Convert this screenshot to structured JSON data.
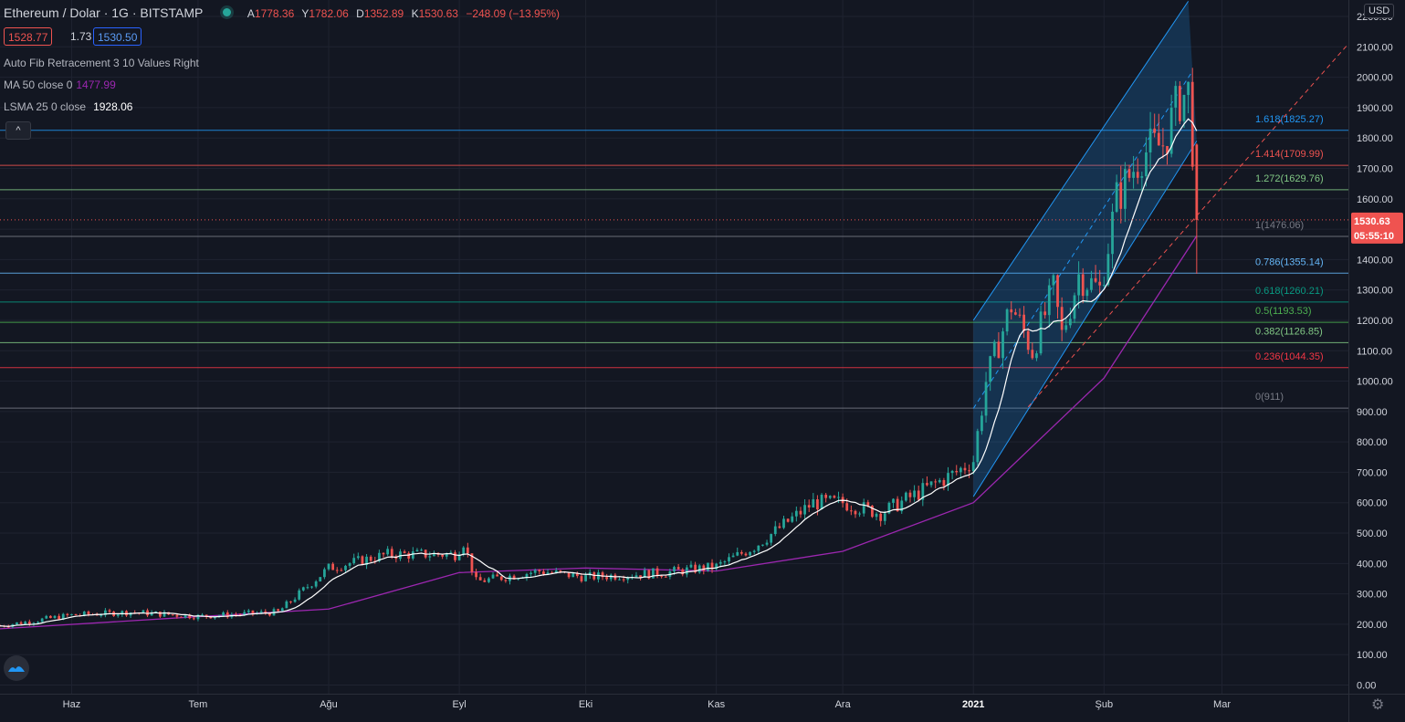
{
  "header": {
    "symbol": "Ethereum / Dolar · 1G · BITSTAMP",
    "open_label": "A",
    "open": "1778.36",
    "high_label": "Y",
    "high": "1782.06",
    "low_label": "D",
    "low": "1352.89",
    "close_label": "K",
    "close": "1530.63",
    "change": "−248.09 (−13.95%)"
  },
  "quote": {
    "bid": "1528.77",
    "spread": "1.73",
    "ask": "1530.50"
  },
  "indicators": {
    "fib": {
      "label": "Auto Fib Retracement 3 10 Values Right"
    },
    "ma": {
      "label": "MA 50 close 0",
      "value": "1477.99"
    },
    "lsma": {
      "label": "LSMA 25 0 close",
      "value": "1928.06"
    }
  },
  "toolbar": {
    "collapse_glyph": "^"
  },
  "currency": "USD",
  "colors": {
    "bg": "#131722",
    "up": "#26a69a",
    "down": "#ef5350",
    "ma": "#9c27b0",
    "lsma": "#ffffff",
    "channel": "#2962ff"
  },
  "chart_data": {
    "type": "candlestick",
    "y_axis": {
      "min": 0,
      "max": 2230,
      "ticks": [
        0,
        100,
        200,
        300,
        400,
        500,
        600,
        700,
        800,
        900,
        1000,
        1100,
        1200,
        1300,
        1400,
        1500,
        1600,
        1700,
        1800,
        1900,
        2000,
        2100,
        2200
      ],
      "tick_labels": [
        "0.00",
        "100.00",
        "200.00",
        "300.00",
        "400.00",
        "500.00",
        "600.00",
        "700.00",
        "800.00",
        "900.00",
        "1000.00",
        "1100.00",
        "1200.00",
        "1300.00",
        "1400.00",
        "1500.00",
        "1600.00",
        "1700.00",
        "1800.00",
        "1900.00",
        "2000.00",
        "2100.00",
        "2200.00"
      ]
    },
    "x_axis": {
      "start": "2020-05-15",
      "end": "2021-03-31",
      "ticks": [
        {
          "date": "2020-06-01",
          "label": "Haz"
        },
        {
          "date": "2020-07-01",
          "label": "Tem"
        },
        {
          "date": "2020-08-01",
          "label": "Ağu"
        },
        {
          "date": "2020-09-01",
          "label": "Eyl"
        },
        {
          "date": "2020-10-01",
          "label": "Eki"
        },
        {
          "date": "2020-11-01",
          "label": "Kas"
        },
        {
          "date": "2020-12-01",
          "label": "Ara"
        },
        {
          "date": "2021-01-01",
          "label": "2021"
        },
        {
          "date": "2021-02-01",
          "label": "Şub"
        },
        {
          "date": "2021-03-01",
          "label": "Mar"
        }
      ]
    },
    "price_anchors": [
      {
        "date": "2020-05-15",
        "price": 195
      },
      {
        "date": "2020-06-01",
        "price": 230
      },
      {
        "date": "2020-06-15",
        "price": 240
      },
      {
        "date": "2020-07-01",
        "price": 226
      },
      {
        "date": "2020-07-20",
        "price": 240
      },
      {
        "date": "2020-08-01",
        "price": 385
      },
      {
        "date": "2020-08-15",
        "price": 430
      },
      {
        "date": "2020-08-31",
        "price": 430
      },
      {
        "date": "2020-09-02",
        "price": 470
      },
      {
        "date": "2020-09-05",
        "price": 340
      },
      {
        "date": "2020-09-20",
        "price": 375
      },
      {
        "date": "2020-10-01",
        "price": 355
      },
      {
        "date": "2020-10-20",
        "price": 370
      },
      {
        "date": "2020-11-01",
        "price": 390
      },
      {
        "date": "2020-11-10",
        "price": 455
      },
      {
        "date": "2020-11-24",
        "price": 600
      },
      {
        "date": "2020-12-01",
        "price": 600
      },
      {
        "date": "2020-12-10",
        "price": 565
      },
      {
        "date": "2020-12-20",
        "price": 640
      },
      {
        "date": "2020-12-28",
        "price": 700
      },
      {
        "date": "2021-01-01",
        "price": 740
      },
      {
        "date": "2021-01-04",
        "price": 1000
      },
      {
        "date": "2021-01-10",
        "price": 1250
      },
      {
        "date": "2021-01-15",
        "price": 1100
      },
      {
        "date": "2021-01-20",
        "price": 1300
      },
      {
        "date": "2021-01-22",
        "price": 1150
      },
      {
        "date": "2021-01-26",
        "price": 1350
      },
      {
        "date": "2021-01-31",
        "price": 1300
      },
      {
        "date": "2021-02-04",
        "price": 1600
      },
      {
        "date": "2021-02-10",
        "price": 1750
      },
      {
        "date": "2021-02-15",
        "price": 1780
      },
      {
        "date": "2021-02-19",
        "price": 1930
      },
      {
        "date": "2021-02-21",
        "price": 1950
      },
      {
        "date": "2021-02-22",
        "price": 1778
      }
    ],
    "last_candle": {
      "date": "2021-02-23",
      "open": 1778.36,
      "high": 1782.06,
      "low": 1352.89,
      "close": 1530.63
    },
    "ma50_points": [
      {
        "date": "2020-05-15",
        "price": 185
      },
      {
        "date": "2020-07-01",
        "price": 225
      },
      {
        "date": "2020-08-01",
        "price": 250
      },
      {
        "date": "2020-09-01",
        "price": 370
      },
      {
        "date": "2020-10-01",
        "price": 385
      },
      {
        "date": "2020-11-01",
        "price": 375
      },
      {
        "date": "2020-12-01",
        "price": 440
      },
      {
        "date": "2021-01-01",
        "price": 600
      },
      {
        "date": "2021-02-01",
        "price": 1010
      },
      {
        "date": "2021-02-23",
        "price": 1478
      }
    ],
    "fib_levels": [
      {
        "label": "1.618(1825.27)",
        "price": 1825.27,
        "color": "#2196f3"
      },
      {
        "label": "1.414(1709.99)",
        "price": 1709.99,
        "color": "#ef5350"
      },
      {
        "label": "1.272(1629.76)",
        "price": 1629.76,
        "color": "#81c784"
      },
      {
        "label": "1(1476.06)",
        "price": 1476.06,
        "color": "#787b86"
      },
      {
        "label": "0.786(1355.14)",
        "price": 1355.14,
        "color": "#64b5f6"
      },
      {
        "label": "0.618(1260.21)",
        "price": 1260.21,
        "color": "#089981"
      },
      {
        "label": "0.5(1193.53)",
        "price": 1193.53,
        "color": "#4caf50"
      },
      {
        "label": "0.382(1126.85)",
        "price": 1126.85,
        "color": "#81c784"
      },
      {
        "label": "0.236(1044.35)",
        "price": 1044.35,
        "color": "#f23645"
      },
      {
        "label": "0(911)",
        "price": 911,
        "color": "#787b86"
      }
    ],
    "channel": {
      "upper": [
        {
          "date": "2021-01-01",
          "price": 1200
        },
        {
          "date": "2021-02-21",
          "price": 2250
        }
      ],
      "lower": [
        {
          "date": "2021-01-01",
          "price": 620
        },
        {
          "date": "2021-02-23",
          "price": 1790
        }
      ],
      "dashed": {
        "start": {
          "date": "2021-01-14",
          "price": 915
        },
        "end": {
          "date": "2021-03-31",
          "price": 2110
        }
      }
    },
    "last_price": {
      "value": "1530.63",
      "countdown": "05:55:10"
    }
  }
}
